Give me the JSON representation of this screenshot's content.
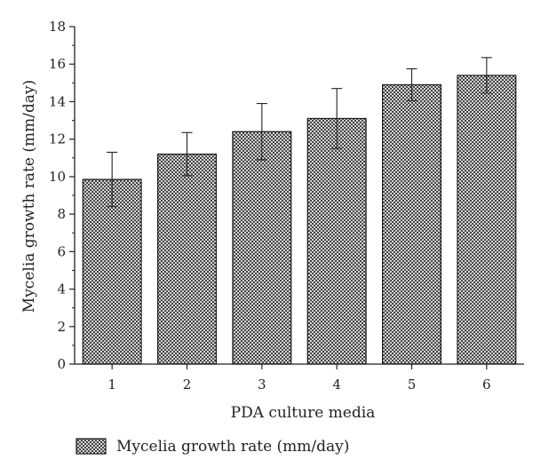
{
  "chart_data": {
    "type": "bar",
    "xlabel": "PDA culture media",
    "ylabel": "Mycelia growth rate (mm/day)",
    "categories": [
      "1",
      "2",
      "3",
      "4",
      "5",
      "6"
    ],
    "series": [
      {
        "name": "Mycelia growth rate (mm/day)",
        "values": [
          9.85,
          11.2,
          12.4,
          13.1,
          14.9,
          15.4
        ],
        "errors": [
          1.45,
          1.15,
          1.5,
          1.6,
          0.85,
          0.95
        ]
      }
    ],
    "ylim": [
      0,
      18
    ],
    "yticks": [
      "0",
      "2",
      "4",
      "6",
      "8",
      "10",
      "12",
      "14",
      "16",
      "18"
    ],
    "grid": false,
    "legend_position": "bottom-left",
    "bar_fill": "crosshatch",
    "colors": {
      "bar_fill": "#9a9a9a",
      "bar_edge": "#1a1a1a",
      "axis": "#222222"
    }
  }
}
